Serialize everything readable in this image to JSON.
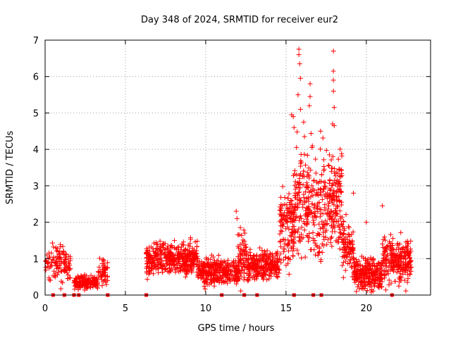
{
  "chart_data": {
    "type": "scatter",
    "title": "Day 348 of 2024, SRMTID for receiver eur2",
    "xlabel": "GPS time / hours",
    "ylabel": "SRMTID / TECUs",
    "xlim": [
      0,
      24
    ],
    "ylim": [
      0,
      7
    ],
    "xticks": [
      0,
      5,
      10,
      15,
      20
    ],
    "yticks": [
      0,
      1,
      2,
      3,
      4,
      5,
      6,
      7
    ],
    "xtick_labels": [
      "0",
      "5",
      "10",
      "15",
      "20"
    ],
    "ytick_labels": [
      "0",
      "1",
      "2",
      "3",
      "4",
      "5",
      "6",
      "7"
    ],
    "grid": true,
    "marker": "+",
    "color": "#ff0000",
    "series": [
      {
        "name": "SRMTID",
        "segments": [
          {
            "x_start": 0.0,
            "x_end": 1.6,
            "level": 0.9,
            "spread": 0.4,
            "n": 120
          },
          {
            "x_start": 1.8,
            "x_end": 3.3,
            "level": 0.35,
            "spread": 0.15,
            "n": 150
          },
          {
            "x_start": 3.3,
            "x_end": 3.9,
            "level": 0.6,
            "spread": 0.35,
            "n": 50
          },
          {
            "x_start": 6.3,
            "x_end": 9.5,
            "level": 1.0,
            "spread": 0.35,
            "n": 420
          },
          {
            "x_start": 9.5,
            "x_end": 12.0,
            "level": 0.65,
            "spread": 0.3,
            "n": 300
          },
          {
            "x_start": 12.0,
            "x_end": 12.6,
            "level": 1.0,
            "spread": 0.6,
            "n": 80
          },
          {
            "x_start": 12.6,
            "x_end": 14.6,
            "level": 0.8,
            "spread": 0.3,
            "n": 260
          },
          {
            "x_start": 14.6,
            "x_end": 15.5,
            "level": 1.9,
            "spread": 0.8,
            "n": 130
          },
          {
            "x_start": 15.5,
            "x_end": 17.5,
            "level": 2.5,
            "spread": 1.2,
            "n": 260
          },
          {
            "x_start": 17.5,
            "x_end": 18.5,
            "level": 2.6,
            "spread": 1.1,
            "n": 160
          },
          {
            "x_start": 18.5,
            "x_end": 19.2,
            "level": 1.4,
            "spread": 0.6,
            "n": 90
          },
          {
            "x_start": 19.2,
            "x_end": 21.0,
            "level": 0.6,
            "spread": 0.35,
            "n": 260
          },
          {
            "x_start": 21.0,
            "x_end": 21.6,
            "level": 1.0,
            "spread": 0.5,
            "n": 70
          },
          {
            "x_start": 21.6,
            "x_end": 22.8,
            "level": 0.9,
            "spread": 0.5,
            "n": 170
          }
        ],
        "peaks": [
          {
            "x": 15.8,
            "y": 6.75
          },
          {
            "x": 15.8,
            "y": 6.6
          },
          {
            "x": 15.85,
            "y": 6.35
          },
          {
            "x": 15.9,
            "y": 5.95
          },
          {
            "x": 15.75,
            "y": 5.5
          },
          {
            "x": 15.9,
            "y": 5.1
          },
          {
            "x": 15.35,
            "y": 4.95
          },
          {
            "x": 15.45,
            "y": 4.9
          },
          {
            "x": 15.5,
            "y": 4.6
          },
          {
            "x": 16.5,
            "y": 5.8
          },
          {
            "x": 16.5,
            "y": 5.45
          },
          {
            "x": 16.45,
            "y": 5.2
          },
          {
            "x": 17.95,
            "y": 6.7
          },
          {
            "x": 17.95,
            "y": 6.15
          },
          {
            "x": 17.95,
            "y": 5.9
          },
          {
            "x": 17.95,
            "y": 5.6
          },
          {
            "x": 18.0,
            "y": 5.15
          },
          {
            "x": 17.9,
            "y": 4.7
          },
          {
            "x": 18.0,
            "y": 4.65
          },
          {
            "x": 17.15,
            "y": 4.5
          },
          {
            "x": 16.1,
            "y": 4.75
          },
          {
            "x": 21.0,
            "y": 2.45
          },
          {
            "x": 11.9,
            "y": 2.3
          },
          {
            "x": 11.95,
            "y": 2.1
          },
          {
            "x": 19.2,
            "y": 2.8
          },
          {
            "x": 20.0,
            "y": 2.0
          }
        ],
        "zero_points": [
          0.5,
          1.2,
          1.8,
          2.1,
          3.9,
          6.3,
          11.0,
          12.4,
          13.2,
          15.5,
          16.7,
          17.2,
          21.6
        ]
      }
    ]
  }
}
